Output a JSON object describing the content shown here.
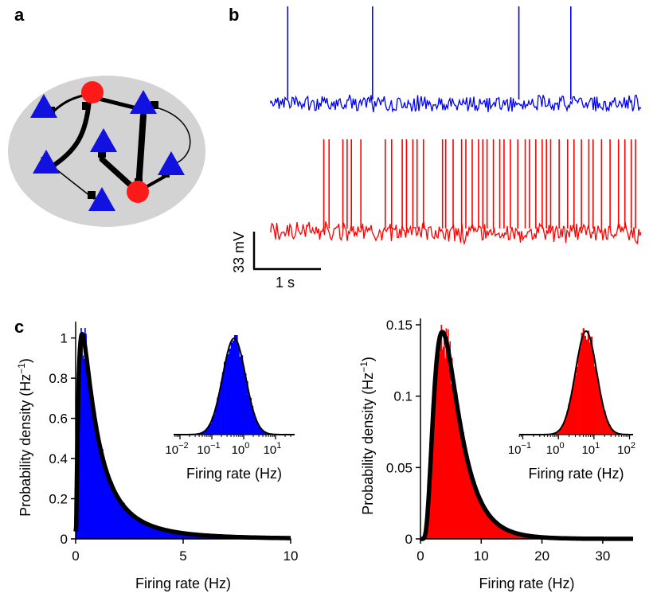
{
  "panels": {
    "a": "a",
    "b": "b",
    "c": "c"
  },
  "network": {
    "colors": {
      "background": "#d3d3d3",
      "excitatory": "#1212e0",
      "inhibitory": "#ff1a1a",
      "edge": "#000000"
    }
  },
  "traces": {
    "series": [
      {
        "name": "",
        "color": "#0000ff",
        "spike_times_s": [
          0.16,
          0.96,
          2.34,
          2.83
        ]
      },
      {
        "name": "",
        "color": "#ff0000",
        "spike_times_s": [
          0.5,
          0.55,
          0.68,
          0.72,
          0.76,
          0.85,
          1.08,
          1.14,
          1.24,
          1.28,
          1.34,
          1.38,
          1.44,
          1.62,
          1.65,
          1.72,
          1.8,
          1.84,
          1.9,
          1.96,
          2.0,
          2.04,
          2.1,
          2.16,
          2.2,
          2.26,
          2.33,
          2.4,
          2.44,
          2.5,
          2.56,
          2.6,
          2.64,
          2.72,
          2.8,
          2.86,
          2.93,
          3.0,
          3.04,
          3.12,
          3.2,
          3.28,
          3.34,
          3.4,
          3.44
        ]
      }
    ],
    "scalebar": {
      "voltage_label": "33 mV",
      "time_label": "1 s"
    }
  },
  "chart_data": [
    {
      "type": "bar",
      "color": "#0000ff",
      "fit_color": "#000000",
      "xlabel": "Firing rate (Hz)",
      "ylabel": "Probability density (Hz",
      "ylabel_sup": "−1",
      "ylabel_end": ")",
      "xlim": [
        0,
        10
      ],
      "ylim": [
        0,
        1.05
      ],
      "xticks": [
        "0",
        "5",
        "10"
      ],
      "yticks": [
        "0",
        "0.2",
        "0.4",
        "0.6",
        "0.8",
        "1"
      ],
      "fit": {
        "shape": "lognormal",
        "mode_hz": 0.3,
        "peak_density": 1.02
      },
      "inset": {
        "type": "bar",
        "scale": "log",
        "xlabel": "Firing rate (Hz)",
        "xticks": [
          "10",
          "10",
          "10",
          "10"
        ],
        "xtick_exponents": [
          "−2",
          "−1",
          "0",
          "1"
        ],
        "xlim_log10": [
          -2.2,
          1.6
        ],
        "fit": {
          "center_hz": 0.5
        }
      }
    },
    {
      "type": "bar",
      "color": "#ff0000",
      "fit_color": "#000000",
      "xlabel": "Firing rate (Hz)",
      "ylabel": "Probability density (Hz",
      "ylabel_sup": "−1",
      "ylabel_end": ")",
      "xlim": [
        0,
        35
      ],
      "ylim": [
        0,
        0.15
      ],
      "xticks": [
        "0",
        "10",
        "20",
        "30"
      ],
      "yticks": [
        "0",
        "0.05",
        "0.1",
        "0.15"
      ],
      "fit": {
        "shape": "lognormal",
        "mode_hz": 3.6,
        "peak_density": 0.145
      },
      "inset": {
        "type": "bar",
        "scale": "log",
        "xlabel": "Firing rate (Hz)",
        "xticks": [
          "10",
          "10",
          "10",
          "10"
        ],
        "xtick_exponents": [
          "−1",
          "0",
          "1",
          "2"
        ],
        "xlim_log10": [
          -1.1,
          2.1
        ],
        "fit": {
          "center_hz": 6
        }
      }
    }
  ]
}
